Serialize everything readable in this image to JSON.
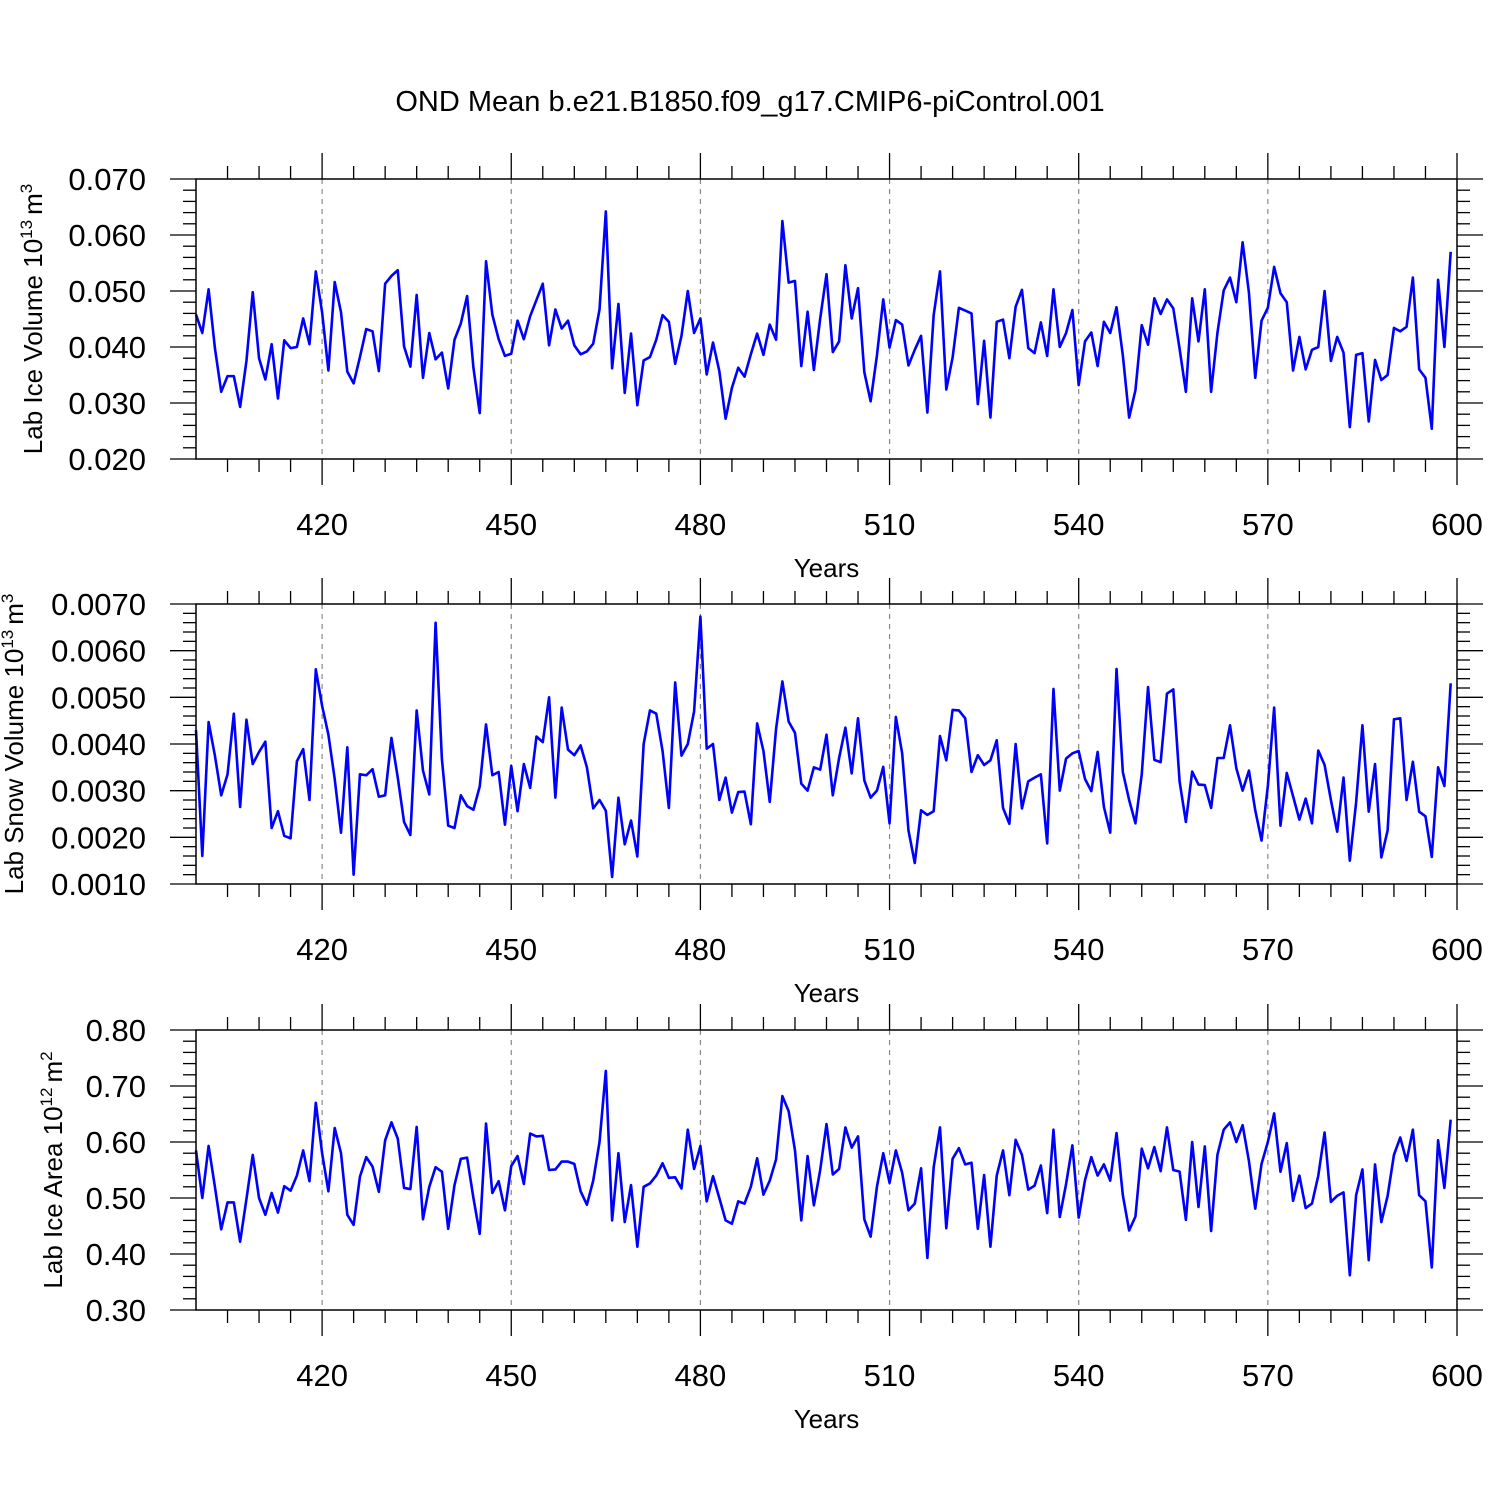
{
  "title": "OND Mean b.e21.B1850.f09_g17.CMIP6-piControl.001",
  "line_color": "#0000ff",
  "chart_data": [
    {
      "type": "line",
      "xlabel": "Years",
      "ylabel": "Lab Ice Volume 10",
      "ylabel_exp": "13",
      "ylabel_unit": "m",
      "ylabel_unit_exp": "3",
      "xlim": [
        400,
        600
      ],
      "ylim": [
        0.02,
        0.07
      ],
      "xticks": [
        "420",
        "450",
        "480",
        "510",
        "540",
        "570",
        "600"
      ],
      "yticks": [
        "0.020",
        "0.030",
        "0.040",
        "0.050",
        "0.060",
        "0.070"
      ],
      "x_start": 400,
      "series": [
        {
          "values": [
            0.0458,
            0.0425,
            0.0503,
            0.0398,
            0.032,
            0.0348,
            0.0348,
            0.0293,
            0.0375,
            0.0498,
            0.038,
            0.0342,
            0.0405,
            0.0308,
            0.0412,
            0.0398,
            0.04,
            0.0451,
            0.0405,
            0.0535,
            0.0462,
            0.0358,
            0.0516,
            0.0462,
            0.0356,
            0.0335,
            0.0382,
            0.0432,
            0.0428,
            0.0357,
            0.0513,
            0.0527,
            0.0537,
            0.0401,
            0.0365,
            0.0493,
            0.0345,
            0.0425,
            0.0378,
            0.039,
            0.0326,
            0.0413,
            0.0442,
            0.0491,
            0.0363,
            0.0282,
            0.0553,
            0.0458,
            0.0414,
            0.0384,
            0.0388,
            0.0447,
            0.0414,
            0.0455,
            0.0484,
            0.0513,
            0.0403,
            0.0467,
            0.0433,
            0.0447,
            0.0403,
            0.0387,
            0.0392,
            0.0406,
            0.0467,
            0.0642,
            0.0362,
            0.0477,
            0.0318,
            0.0424,
            0.0296,
            0.0376,
            0.0382,
            0.0413,
            0.0457,
            0.0445,
            0.037,
            0.042,
            0.05,
            0.0425,
            0.0451,
            0.0351,
            0.0408,
            0.0357,
            0.0272,
            0.0327,
            0.0363,
            0.0347,
            0.0387,
            0.0424,
            0.0386,
            0.044,
            0.0413,
            0.0625,
            0.0515,
            0.0518,
            0.0366,
            0.0463,
            0.0359,
            0.0451,
            0.053,
            0.0391,
            0.041,
            0.0546,
            0.0451,
            0.0505,
            0.0355,
            0.0303,
            0.0385,
            0.0485,
            0.0399,
            0.0448,
            0.044,
            0.0367,
            0.0395,
            0.042,
            0.0283,
            0.0457,
            0.0535,
            0.0324,
            0.0381,
            0.047,
            0.0465,
            0.046,
            0.0298,
            0.0411,
            0.0274,
            0.0445,
            0.0449,
            0.038,
            0.0472,
            0.0502,
            0.0398,
            0.0389,
            0.0444,
            0.0384,
            0.0503,
            0.04,
            0.0425,
            0.0466,
            0.0332,
            0.041,
            0.0426,
            0.0366,
            0.0445,
            0.0425,
            0.0471,
            0.0385,
            0.0274,
            0.0323,
            0.0439,
            0.0404,
            0.0487,
            0.0459,
            0.0485,
            0.0469,
            0.0397,
            0.032,
            0.0487,
            0.041,
            0.0503,
            0.032,
            0.0425,
            0.0501,
            0.0524,
            0.048,
            0.0587,
            0.0497,
            0.0345,
            0.0447,
            0.047,
            0.0543,
            0.0496,
            0.048,
            0.0358,
            0.0418,
            0.036,
            0.0395,
            0.04,
            0.05,
            0.0375,
            0.0418,
            0.039,
            0.0257,
            0.0386,
            0.0389,
            0.0267,
            0.0377,
            0.0341,
            0.035,
            0.0434,
            0.0428,
            0.0436,
            0.0524,
            0.036,
            0.0345,
            0.0254,
            0.052,
            0.04,
            0.057
          ]
        }
      ]
    },
    {
      "type": "line",
      "xlabel": "Years",
      "ylabel": "Lab Snow Volume 10",
      "ylabel_exp": "13",
      "ylabel_unit": "m",
      "ylabel_unit_exp": "3",
      "xlim": [
        400,
        600
      ],
      "ylim": [
        0.001,
        0.007
      ],
      "xticks": [
        "420",
        "450",
        "480",
        "510",
        "540",
        "570",
        "600"
      ],
      "yticks": [
        "0.0010",
        "0.0020",
        "0.0030",
        "0.0040",
        "0.0050",
        "0.0060",
        "0.0070"
      ],
      "x_start": 400,
      "series": [
        {
          "values": [
            0.0043,
            0.0016,
            0.00447,
            0.00375,
            0.0029,
            0.00335,
            0.00465,
            0.00265,
            0.00452,
            0.00357,
            0.00383,
            0.00405,
            0.0022,
            0.00256,
            0.00203,
            0.00198,
            0.00363,
            0.00389,
            0.0028,
            0.0056,
            0.00482,
            0.0042,
            0.00325,
            0.0021,
            0.00393,
            0.0012,
            0.00335,
            0.00333,
            0.00346,
            0.00287,
            0.0029,
            0.00413,
            0.00328,
            0.00233,
            0.00205,
            0.00472,
            0.00343,
            0.00292,
            0.0066,
            0.00368,
            0.00225,
            0.0022,
            0.0029,
            0.00267,
            0.00259,
            0.00309,
            0.00442,
            0.00333,
            0.0034,
            0.00227,
            0.00353,
            0.00256,
            0.00357,
            0.00306,
            0.00416,
            0.00404,
            0.005,
            0.00285,
            0.00478,
            0.00388,
            0.00376,
            0.00397,
            0.0035,
            0.00262,
            0.0028,
            0.00257,
            0.00115,
            0.00285,
            0.00185,
            0.00236,
            0.00159,
            0.004,
            0.00472,
            0.00465,
            0.00385,
            0.00263,
            0.00532,
            0.00375,
            0.004,
            0.0047,
            0.00673,
            0.0039,
            0.004,
            0.0028,
            0.00328,
            0.00253,
            0.00297,
            0.00298,
            0.00228,
            0.00444,
            0.00385,
            0.00276,
            0.00432,
            0.00534,
            0.00448,
            0.00424,
            0.00315,
            0.003,
            0.0035,
            0.00345,
            0.0042,
            0.0029,
            0.0037,
            0.00435,
            0.00337,
            0.00455,
            0.00322,
            0.00285,
            0.003,
            0.00351,
            0.0023,
            0.00458,
            0.0038,
            0.00215,
            0.00145,
            0.00258,
            0.00248,
            0.00256,
            0.00417,
            0.00365,
            0.00473,
            0.00472,
            0.00455,
            0.0034,
            0.00376,
            0.00355,
            0.00365,
            0.00408,
            0.00263,
            0.00229,
            0.004,
            0.00262,
            0.0032,
            0.00328,
            0.00335,
            0.00187,
            0.00518,
            0.003,
            0.00369,
            0.0038,
            0.00385,
            0.00325,
            0.00299,
            0.00383,
            0.00265,
            0.0021,
            0.00561,
            0.0034,
            0.0028,
            0.0023,
            0.00335,
            0.00522,
            0.00366,
            0.00361,
            0.00508,
            0.00517,
            0.0032,
            0.00233,
            0.00341,
            0.00313,
            0.00312,
            0.00263,
            0.0037,
            0.0037,
            0.0044,
            0.00348,
            0.003,
            0.00343,
            0.00258,
            0.00193,
            0.0031,
            0.00478,
            0.00225,
            0.00338,
            0.00288,
            0.00238,
            0.00283,
            0.0023,
            0.00386,
            0.00355,
            0.0028,
            0.00212,
            0.00328,
            0.0015,
            0.00275,
            0.0044,
            0.00255,
            0.00357,
            0.00157,
            0.00215,
            0.00453,
            0.00455,
            0.0028,
            0.00362,
            0.00255,
            0.00245,
            0.00158,
            0.0035,
            0.0031,
            0.0053
          ]
        }
      ]
    },
    {
      "type": "line",
      "xlabel": "Years",
      "ylabel": "Lab Ice Area 10",
      "ylabel_exp": "12",
      "ylabel_unit": "m",
      "ylabel_unit_exp": "2",
      "xlim": [
        400,
        600
      ],
      "ylim": [
        0.3,
        0.8
      ],
      "xticks": [
        "420",
        "450",
        "480",
        "510",
        "540",
        "570",
        "600"
      ],
      "yticks": [
        "0.30",
        "0.40",
        "0.50",
        "0.60",
        "0.70",
        "0.80"
      ],
      "x_start": 400,
      "series": [
        {
          "values": [
            0.585,
            0.5,
            0.593,
            0.52,
            0.444,
            0.492,
            0.492,
            0.422,
            0.498,
            0.577,
            0.5,
            0.47,
            0.509,
            0.474,
            0.521,
            0.513,
            0.54,
            0.585,
            0.53,
            0.67,
            0.58,
            0.512,
            0.625,
            0.58,
            0.47,
            0.452,
            0.538,
            0.573,
            0.556,
            0.511,
            0.603,
            0.635,
            0.606,
            0.518,
            0.516,
            0.627,
            0.462,
            0.52,
            0.555,
            0.547,
            0.445,
            0.523,
            0.57,
            0.572,
            0.5,
            0.436,
            0.633,
            0.509,
            0.53,
            0.478,
            0.557,
            0.575,
            0.525,
            0.615,
            0.61,
            0.611,
            0.55,
            0.551,
            0.565,
            0.565,
            0.561,
            0.512,
            0.488,
            0.531,
            0.6,
            0.727,
            0.46,
            0.58,
            0.457,
            0.523,
            0.413,
            0.52,
            0.526,
            0.54,
            0.562,
            0.536,
            0.537,
            0.517,
            0.622,
            0.552,
            0.593,
            0.494,
            0.539,
            0.5,
            0.46,
            0.454,
            0.494,
            0.49,
            0.52,
            0.571,
            0.506,
            0.531,
            0.569,
            0.682,
            0.655,
            0.585,
            0.46,
            0.575,
            0.487,
            0.55,
            0.632,
            0.542,
            0.552,
            0.626,
            0.59,
            0.61,
            0.462,
            0.431,
            0.52,
            0.58,
            0.527,
            0.585,
            0.545,
            0.478,
            0.49,
            0.553,
            0.393,
            0.555,
            0.626,
            0.446,
            0.57,
            0.589,
            0.56,
            0.563,
            0.445,
            0.541,
            0.413,
            0.54,
            0.585,
            0.505,
            0.604,
            0.577,
            0.515,
            0.522,
            0.558,
            0.473,
            0.622,
            0.466,
            0.525,
            0.594,
            0.465,
            0.532,
            0.573,
            0.54,
            0.56,
            0.531,
            0.616,
            0.505,
            0.442,
            0.467,
            0.588,
            0.553,
            0.591,
            0.548,
            0.626,
            0.55,
            0.547,
            0.461,
            0.6,
            0.484,
            0.592,
            0.441,
            0.577,
            0.622,
            0.635,
            0.6,
            0.63,
            0.566,
            0.481,
            0.561,
            0.6,
            0.651,
            0.547,
            0.598,
            0.495,
            0.54,
            0.482,
            0.49,
            0.54,
            0.617,
            0.493,
            0.504,
            0.51,
            0.362,
            0.505,
            0.551,
            0.389,
            0.56,
            0.457,
            0.504,
            0.577,
            0.608,
            0.566,
            0.622,
            0.505,
            0.494,
            0.376,
            0.603,
            0.518,
            0.64
          ]
        }
      ]
    }
  ]
}
